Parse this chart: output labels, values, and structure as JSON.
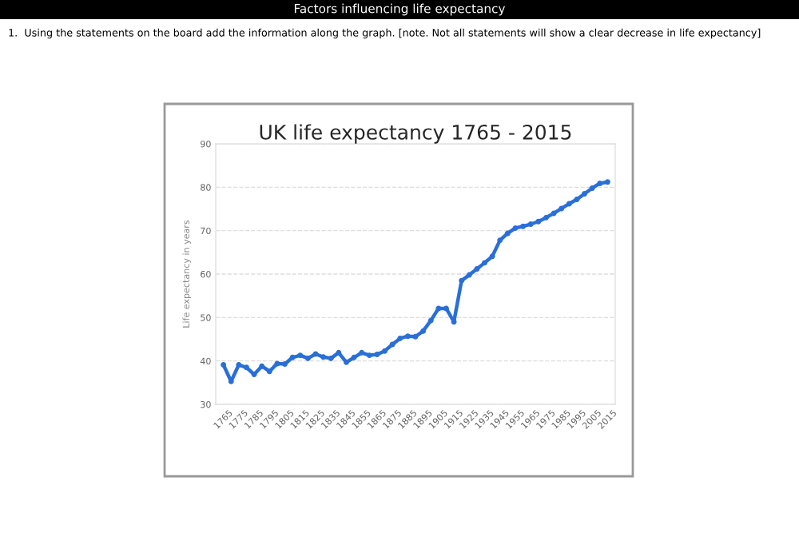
{
  "chart_data": {
    "type": "line",
    "title": "UK life expectancy 1765 - 2015",
    "ylabel": "Life expectancy in years",
    "annotations": [
      "Factors influencing life expectancy",
      "1.  Using the statements on the board add the information along the graph. [note. Not all statements will show a clear decrease in life expectancy]"
    ],
    "x": [
      1765,
      1770,
      1775,
      1780,
      1785,
      1790,
      1795,
      1800,
      1805,
      1810,
      1815,
      1820,
      1825,
      1830,
      1835,
      1840,
      1845,
      1850,
      1855,
      1860,
      1865,
      1870,
      1875,
      1880,
      1885,
      1890,
      1895,
      1900,
      1905,
      1910,
      1915,
      1920,
      1925,
      1930,
      1935,
      1940,
      1945,
      1950,
      1955,
      1960,
      1965,
      1970,
      1975,
      1980,
      1985,
      1990,
      1995,
      2000,
      2005,
      2010,
      2015
    ],
    "series": [
      {
        "color": "#2a6fd8",
        "values": [
          39.1,
          35.3,
          39.1,
          38.5,
          36.9,
          38.8,
          37.6,
          39.4,
          39.3,
          40.8,
          41.3,
          40.6,
          41.6,
          40.9,
          40.6,
          41.9,
          39.7,
          40.8,
          41.9,
          41.3,
          41.5,
          42.3,
          43.8,
          45.2,
          45.7,
          45.6,
          46.9,
          49.3,
          52.1,
          52.1,
          49.0,
          58.5,
          59.8,
          61.2,
          62.6,
          64.1,
          67.8,
          69.4,
          70.6,
          71.0,
          71.5,
          72.1,
          73.0,
          74.0,
          75.1,
          76.2,
          77.2,
          78.5,
          79.8,
          80.9,
          81.2
        ]
      }
    ],
    "xlim": [
      1760,
      2020
    ],
    "xticks": [
      1765,
      1775,
      1785,
      1795,
      1805,
      1815,
      1825,
      1835,
      1845,
      1855,
      1865,
      1875,
      1885,
      1895,
      1905,
      1915,
      1925,
      1935,
      1945,
      1955,
      1965,
      1975,
      1985,
      1995,
      2005,
      2015
    ],
    "ylim": [
      30,
      90
    ],
    "yticks": [
      30,
      40,
      50,
      60,
      70,
      80,
      90
    ],
    "grid": "y",
    "legend": false,
    "marker": "circle",
    "line_style": "solid"
  }
}
